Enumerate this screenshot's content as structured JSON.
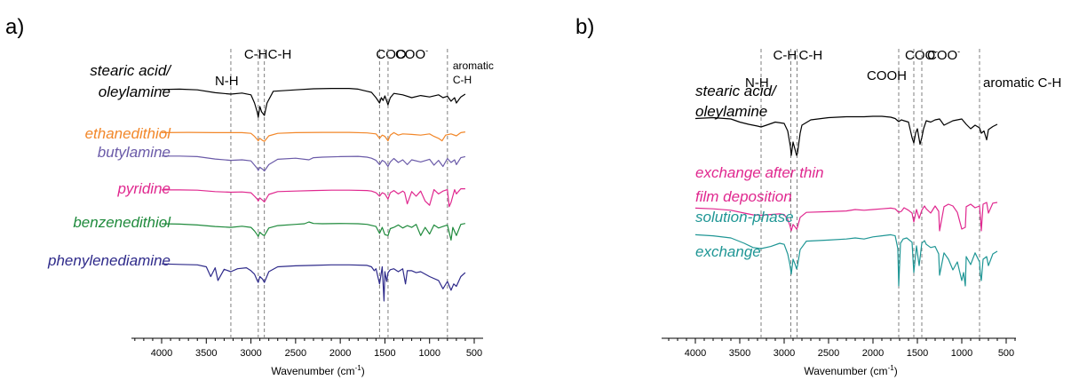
{
  "chart_data": [
    {
      "panel": "a)",
      "type": "line",
      "xlabel": "Wavenumber (cm",
      "xlabel_sup": "-1",
      "xlabel_close": ")",
      "xlim": [
        4000,
        500
      ],
      "x_reversed": true,
      "xticks": [
        4000,
        3500,
        3000,
        2500,
        2000,
        1500,
        1000,
        500
      ],
      "band_markers": [
        {
          "wavenumber": 3225,
          "label": "N-H"
        },
        {
          "wavenumber": 2918,
          "label": "C-H"
        },
        {
          "wavenumber": 2850,
          "label": "C-H"
        },
        {
          "wavenumber": 1560,
          "label": "COO",
          "sup": "-"
        },
        {
          "wavenumber": 1465,
          "label": "COO",
          "sup": "-"
        },
        {
          "wavenumber": 800,
          "label": "aromatic",
          "label2": "C-H"
        }
      ],
      "series": [
        {
          "name": "stearic acid/",
          "name2": "oleylamine",
          "color": "#000000",
          "x": [
            4000,
            3800,
            3600,
            3400,
            3225,
            3100,
            3000,
            2960,
            2930,
            2918,
            2900,
            2880,
            2850,
            2820,
            2750,
            2500,
            2300,
            2100,
            1900,
            1800,
            1700,
            1650,
            1600,
            1560,
            1540,
            1520,
            1500,
            1465,
            1440,
            1400,
            1300,
            1200,
            1100,
            1000,
            900,
            850,
            800,
            760,
            720,
            700,
            650,
            600
          ],
          "y": [
            0.93,
            0.94,
            0.92,
            0.84,
            0.8,
            0.83,
            0.78,
            0.55,
            0.3,
            0.15,
            0.45,
            0.3,
            0.2,
            0.55,
            0.88,
            0.92,
            0.95,
            0.96,
            0.96,
            0.94,
            0.88,
            0.85,
            0.7,
            0.55,
            0.7,
            0.62,
            0.75,
            0.5,
            0.7,
            0.82,
            0.78,
            0.7,
            0.76,
            0.72,
            0.78,
            0.7,
            0.74,
            0.6,
            0.7,
            0.55,
            0.72,
            0.8
          ]
        },
        {
          "name": "ethanedithiol",
          "color": "#f28729",
          "x": [
            4000,
            3700,
            3400,
            3225,
            3100,
            3000,
            2960,
            2930,
            2918,
            2900,
            2870,
            2850,
            2800,
            2700,
            2500,
            2200,
            1900,
            1700,
            1600,
            1560,
            1530,
            1500,
            1465,
            1440,
            1400,
            1350,
            1300,
            1200,
            1100,
            1000,
            950,
            900,
            860,
            820,
            760,
            700,
            650,
            600
          ],
          "y": [
            0.95,
            0.96,
            0.95,
            0.95,
            0.95,
            0.92,
            0.8,
            0.68,
            0.62,
            0.72,
            0.64,
            0.6,
            0.82,
            0.92,
            0.95,
            0.96,
            0.96,
            0.94,
            0.9,
            0.72,
            0.85,
            0.8,
            0.62,
            0.85,
            0.95,
            0.85,
            0.9,
            0.88,
            0.85,
            0.9,
            0.8,
            0.72,
            0.62,
            0.85,
            0.9,
            0.82,
            0.95,
            0.98
          ]
        },
        {
          "name": "butylamine",
          "color": "#6a5aa8",
          "x": [
            4000,
            3800,
            3600,
            3400,
            3225,
            3100,
            3000,
            2960,
            2930,
            2918,
            2900,
            2870,
            2850,
            2800,
            2700,
            2500,
            2350,
            2300,
            2200,
            2000,
            1800,
            1700,
            1650,
            1600,
            1560,
            1530,
            1500,
            1465,
            1440,
            1400,
            1350,
            1300,
            1250,
            1200,
            1100,
            1000,
            950,
            900,
            850,
            800,
            760,
            720,
            700,
            650,
            600
          ],
          "y": [
            0.94,
            0.94,
            0.92,
            0.83,
            0.78,
            0.8,
            0.76,
            0.6,
            0.48,
            0.4,
            0.52,
            0.45,
            0.38,
            0.62,
            0.82,
            0.86,
            0.8,
            0.88,
            0.9,
            0.92,
            0.93,
            0.9,
            0.86,
            0.78,
            0.62,
            0.78,
            0.72,
            0.55,
            0.72,
            0.85,
            0.7,
            0.8,
            0.62,
            0.8,
            0.72,
            0.82,
            0.6,
            0.78,
            0.55,
            0.85,
            0.7,
            0.8,
            0.62,
            0.88,
            0.92
          ]
        },
        {
          "name": "pyridine",
          "color": "#e0288f",
          "x": [
            4000,
            3800,
            3600,
            3400,
            3225,
            3100,
            3000,
            2960,
            2930,
            2918,
            2900,
            2870,
            2850,
            2800,
            2700,
            2500,
            2300,
            2100,
            1900,
            1700,
            1650,
            1600,
            1560,
            1530,
            1500,
            1465,
            1440,
            1400,
            1350,
            1300,
            1280,
            1250,
            1200,
            1150,
            1100,
            1050,
            1000,
            980,
            950,
            900,
            850,
            800,
            780,
            760,
            720,
            700,
            650,
            600
          ],
          "y": [
            0.94,
            0.94,
            0.93,
            0.88,
            0.86,
            0.87,
            0.84,
            0.72,
            0.62,
            0.55,
            0.66,
            0.58,
            0.52,
            0.78,
            0.88,
            0.9,
            0.92,
            0.93,
            0.93,
            0.92,
            0.9,
            0.84,
            0.72,
            0.84,
            0.8,
            0.62,
            0.84,
            0.92,
            0.8,
            0.9,
            0.85,
            0.45,
            0.88,
            0.72,
            0.9,
            0.55,
            0.4,
            0.62,
            0.95,
            0.8,
            0.9,
            0.95,
            0.35,
            0.5,
            0.95,
            0.8,
            0.98,
            0.98
          ]
        },
        {
          "name": "benzenedithiol",
          "color": "#1f8a3c",
          "x": [
            4000,
            3800,
            3600,
            3400,
            3225,
            3100,
            3000,
            2960,
            2930,
            2918,
            2900,
            2870,
            2850,
            2800,
            2700,
            2500,
            2400,
            2350,
            2300,
            2200,
            2000,
            1800,
            1700,
            1600,
            1560,
            1530,
            1500,
            1465,
            1440,
            1400,
            1350,
            1300,
            1250,
            1200,
            1150,
            1100,
            1050,
            1000,
            950,
            900,
            850,
            800,
            760,
            740,
            700,
            650,
            600
          ],
          "y": [
            0.94,
            0.93,
            0.9,
            0.85,
            0.82,
            0.86,
            0.82,
            0.7,
            0.58,
            0.52,
            0.66,
            0.58,
            0.55,
            0.8,
            0.88,
            0.92,
            0.94,
            1.0,
            0.95,
            0.94,
            0.95,
            0.94,
            0.92,
            0.85,
            0.62,
            0.82,
            0.58,
            0.55,
            0.78,
            0.82,
            0.9,
            0.8,
            0.88,
            0.82,
            0.92,
            0.55,
            0.82,
            0.6,
            0.9,
            0.8,
            0.85,
            0.9,
            0.4,
            0.82,
            0.55,
            0.92,
            0.95
          ]
        },
        {
          "name": "phenylenediamine",
          "color": "#2e2a8a",
          "x": [
            4000,
            3800,
            3600,
            3500,
            3450,
            3400,
            3370,
            3300,
            3225,
            3150,
            3050,
            3000,
            2960,
            2930,
            2918,
            2900,
            2870,
            2850,
            2800,
            2700,
            2500,
            2300,
            2100,
            1900,
            1700,
            1650,
            1620,
            1600,
            1560,
            1530,
            1510,
            1500,
            1480,
            1465,
            1440,
            1400,
            1350,
            1300,
            1270,
            1250,
            1200,
            1150,
            1100,
            1000,
            900,
            850,
            800,
            760,
            730,
            700,
            650,
            600
          ],
          "y": [
            0.96,
            0.95,
            0.94,
            0.9,
            0.7,
            0.88,
            0.62,
            0.85,
            0.8,
            0.86,
            0.88,
            0.82,
            0.75,
            0.62,
            0.58,
            0.7,
            0.65,
            0.58,
            0.8,
            0.9,
            0.92,
            0.93,
            0.94,
            0.94,
            0.93,
            0.9,
            0.82,
            0.86,
            0.55,
            0.9,
            0.2,
            0.8,
            0.6,
            0.78,
            0.84,
            0.86,
            0.8,
            0.86,
            0.55,
            0.82,
            0.82,
            0.78,
            0.8,
            0.7,
            0.62,
            0.45,
            0.6,
            0.42,
            0.55,
            0.5,
            0.7,
            0.78
          ]
        }
      ]
    },
    {
      "panel": "b)",
      "type": "line",
      "xlabel": "Wavenumber (cm",
      "xlabel_sup": "-1",
      "xlabel_close": ")",
      "xlim": [
        4000,
        500
      ],
      "x_reversed": true,
      "xticks": [
        4000,
        3500,
        3000,
        2500,
        2000,
        1500,
        1000,
        500
      ],
      "band_markers": [
        {
          "wavenumber": 3260,
          "label": "N-H"
        },
        {
          "wavenumber": 2925,
          "label": "C-H"
        },
        {
          "wavenumber": 2855,
          "label": "C-H"
        },
        {
          "wavenumber": 1710,
          "label": "COOH"
        },
        {
          "wavenumber": 1540,
          "label": "COO",
          "sup": "-"
        },
        {
          "wavenumber": 1450,
          "label": "COO",
          "sup": "-"
        },
        {
          "wavenumber": 800,
          "label": "aromatic C-H"
        }
      ],
      "series": [
        {
          "name": "stearic acid/",
          "name2": "oleylamine",
          "color": "#000000",
          "x": [
            4000,
            3800,
            3600,
            3500,
            3400,
            3300,
            3260,
            3200,
            3100,
            3000,
            2960,
            2930,
            2920,
            2900,
            2880,
            2860,
            2850,
            2820,
            2800,
            2700,
            2500,
            2300,
            2100,
            2000,
            1900,
            1800,
            1750,
            1710,
            1680,
            1650,
            1600,
            1560,
            1540,
            1520,
            1500,
            1470,
            1450,
            1430,
            1400,
            1350,
            1300,
            1250,
            1200,
            1100,
            1000,
            950,
            900,
            850,
            800,
            780,
            750,
            720,
            700,
            650,
            600
          ],
          "y": [
            0.93,
            0.95,
            0.92,
            0.85,
            0.8,
            0.76,
            0.74,
            0.78,
            0.85,
            0.82,
            0.65,
            0.3,
            0.1,
            0.4,
            0.25,
            0.1,
            0.15,
            0.6,
            0.78,
            0.9,
            0.95,
            0.97,
            0.97,
            0.98,
            0.98,
            0.96,
            0.93,
            0.86,
            0.9,
            0.88,
            0.85,
            0.5,
            0.38,
            0.6,
            0.7,
            0.35,
            0.5,
            0.7,
            0.88,
            0.85,
            0.9,
            0.92,
            0.78,
            0.88,
            0.92,
            0.8,
            0.7,
            0.78,
            0.72,
            0.6,
            0.65,
            0.45,
            0.68,
            0.75,
            0.8
          ]
        },
        {
          "name": "exchange after thin",
          "name2": "film deposition",
          "color": "#e0288f",
          "x": [
            4000,
            3800,
            3600,
            3450,
            3350,
            3260,
            3150,
            3050,
            3000,
            2960,
            2935,
            2920,
            2900,
            2880,
            2860,
            2850,
            2820,
            2750,
            2500,
            2300,
            2200,
            2100,
            2000,
            1900,
            1800,
            1750,
            1710,
            1680,
            1650,
            1600,
            1560,
            1540,
            1510,
            1480,
            1450,
            1420,
            1400,
            1350,
            1300,
            1260,
            1250,
            1200,
            1150,
            1100,
            1050,
            1000,
            960,
            950,
            900,
            850,
            800,
            790,
            780,
            760,
            720,
            700,
            650,
            600
          ],
          "y": [
            0.94,
            0.92,
            0.88,
            0.8,
            0.75,
            0.74,
            0.76,
            0.78,
            0.76,
            0.62,
            0.45,
            0.3,
            0.48,
            0.42,
            0.35,
            0.4,
            0.68,
            0.82,
            0.84,
            0.86,
            0.9,
            0.88,
            0.9,
            0.92,
            0.94,
            0.92,
            0.82,
            0.85,
            0.95,
            0.88,
            0.8,
            0.55,
            0.9,
            0.65,
            0.88,
            1.0,
            0.92,
            0.8,
            1.0,
            0.85,
            0.3,
            0.98,
            1.05,
            1.0,
            0.82,
            0.35,
            0.4,
            0.98,
            1.05,
            0.95,
            1.0,
            0.7,
            0.3,
            1.05,
            1.1,
            0.8,
            1.08,
            1.1
          ]
        },
        {
          "name": "solution-phase",
          "name2": "exchange",
          "color": "#1f9695",
          "x": [
            4000,
            3800,
            3600,
            3450,
            3350,
            3260,
            3150,
            3050,
            3000,
            2960,
            2935,
            2920,
            2900,
            2880,
            2860,
            2850,
            2820,
            2750,
            2500,
            2300,
            2200,
            2100,
            2000,
            1900,
            1800,
            1750,
            1720,
            1710,
            1690,
            1660,
            1620,
            1560,
            1540,
            1510,
            1480,
            1450,
            1420,
            1400,
            1350,
            1300,
            1260,
            1250,
            1200,
            1150,
            1100,
            1050,
            1000,
            980,
            960,
            950,
            900,
            850,
            800,
            790,
            780,
            760,
            720,
            700,
            650,
            600
          ],
          "y": [
            0.96,
            0.94,
            0.9,
            0.8,
            0.72,
            0.7,
            0.74,
            0.8,
            0.78,
            0.6,
            0.4,
            0.22,
            0.5,
            0.42,
            0.32,
            0.38,
            0.68,
            0.84,
            0.86,
            0.88,
            0.9,
            0.88,
            0.92,
            0.94,
            0.96,
            0.94,
            0.7,
            0.0,
            0.8,
            0.88,
            0.9,
            0.82,
            0.25,
            0.75,
            0.38,
            0.8,
            0.85,
            0.78,
            0.72,
            0.74,
            0.6,
            0.2,
            0.62,
            0.5,
            0.3,
            0.45,
            0.1,
            0.25,
            0.0,
            0.55,
            0.4,
            0.62,
            0.45,
            0.2,
            0.1,
            0.5,
            0.55,
            0.38,
            0.6,
            0.65
          ]
        }
      ]
    }
  ]
}
